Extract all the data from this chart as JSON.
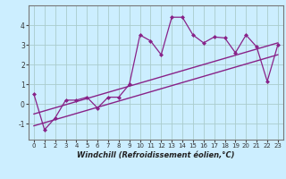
{
  "x_data": [
    0,
    1,
    2,
    3,
    4,
    5,
    6,
    7,
    8,
    9,
    10,
    11,
    12,
    13,
    14,
    15,
    16,
    17,
    18,
    19,
    20,
    21,
    22,
    23
  ],
  "y_data": [
    0.5,
    -1.3,
    -0.7,
    0.2,
    0.2,
    0.35,
    -0.2,
    0.35,
    0.35,
    1.0,
    3.5,
    3.2,
    2.5,
    4.4,
    4.4,
    3.5,
    3.1,
    3.4,
    3.35,
    2.6,
    3.5,
    2.9,
    1.15,
    3.0
  ],
  "line_color": "#882288",
  "marker_color": "#882288",
  "trend_color": "#882288",
  "bg_color": "#cceeff",
  "grid_color": "#aacccc",
  "xlabel": "Windchill (Refroidissement éolien,°C)",
  "xlim": [
    -0.5,
    23.5
  ],
  "ylim": [
    -1.8,
    5.0
  ],
  "yticks": [
    -1,
    0,
    1,
    2,
    3,
    4
  ],
  "xticks": [
    0,
    1,
    2,
    3,
    4,
    5,
    6,
    7,
    8,
    9,
    10,
    11,
    12,
    13,
    14,
    15,
    16,
    17,
    18,
    19,
    20,
    21,
    22,
    23
  ],
  "trend1_x": [
    0,
    23
  ],
  "trend1_y": [
    -0.5,
    3.1
  ],
  "trend2_x": [
    0,
    23
  ],
  "trend2_y": [
    -1.1,
    2.5
  ]
}
